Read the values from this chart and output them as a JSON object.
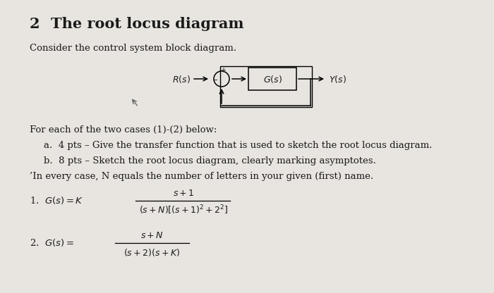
{
  "background_color": "#e8e5e0",
  "title_number": "2",
  "title_text": "The root locus diagram",
  "intro_text": "Consider the control system block diagram.",
  "body_line0": "For each of the two cases (1)-(2) below:",
  "body_line1": "a.  4 pts – Give the transfer function that is used to sketch the root locus diagram.",
  "body_line2": "b.  8 pts – Sketch the root locus diagram, clearly marking asymptotes.",
  "body_line3": "’In every case, N equals the number of letters in your given (first) name.",
  "eq1_label": "1.  $G(s) = K$",
  "eq1_num": "$s+1$",
  "eq1_den": "$(s+N)\\left[(s+1)^2+2^2\\right]$",
  "eq2_label": "2.  $G(s) =$",
  "eq2_num": "$s+N$",
  "eq2_den": "$(s+2)(s+K)$",
  "text_color": "#1a1a1a"
}
